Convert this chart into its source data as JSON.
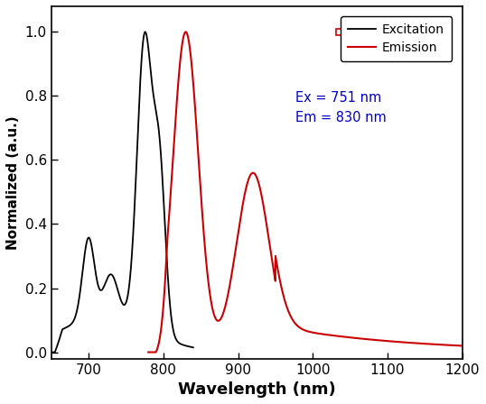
{
  "title": "",
  "xlabel": "Wavelength (nm)",
  "ylabel": "Normalized (a.u.)",
  "xlim": [
    650,
    1200
  ],
  "ylim": [
    -0.02,
    1.08
  ],
  "yticks": [
    0.0,
    0.2,
    0.4,
    0.6,
    0.8,
    1.0
  ],
  "xticks": [
    700,
    800,
    900,
    1000,
    1100,
    1200
  ],
  "excitation_color": "#000000",
  "emission_color": "#cc0000",
  "legend_excitation": "Excitation",
  "legend_emission": "Emission",
  "annotation_line1": "Ex = 751 nm",
  "annotation_line2": "Em = 830 nm",
  "annotation_color": "#0000cc",
  "background_color": "#ffffff",
  "xlabel_fontsize": 13,
  "ylabel_fontsize": 11,
  "tick_fontsize": 11
}
